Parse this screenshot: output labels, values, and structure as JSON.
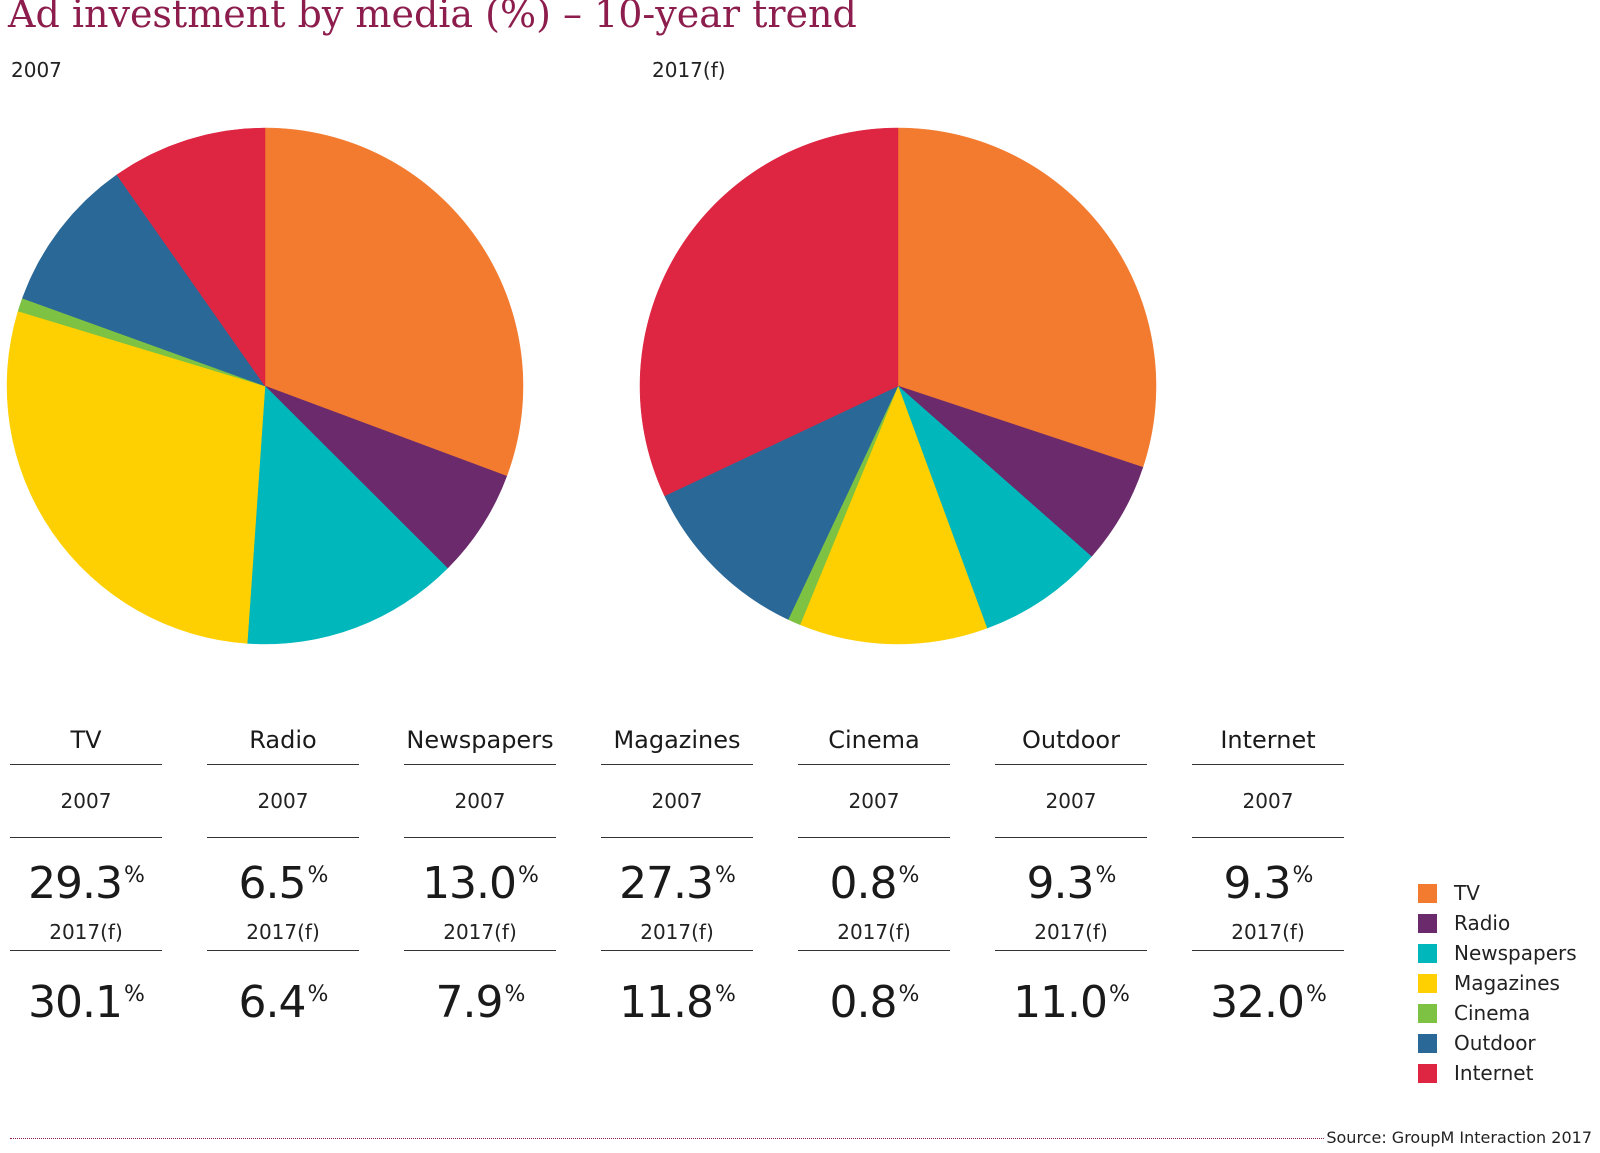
{
  "title": "Ad investment by media (%) – 10-year trend",
  "source": "Source: GroupM Interaction 2017",
  "pie_labels": [
    "2007",
    "2017(f)"
  ],
  "chart_data": [
    {
      "type": "pie",
      "label": "2007",
      "categories": [
        "TV",
        "Radio",
        "Newspapers",
        "Magazines",
        "Cinema",
        "Outdoor",
        "Internet"
      ],
      "values": [
        29.3,
        6.5,
        13.0,
        27.3,
        0.8,
        9.3,
        9.3
      ],
      "colors": [
        "#f37b30",
        "#6b2a6b",
        "#00b7bb",
        "#fed002",
        "#7dc242",
        "#2a6897",
        "#de2541"
      ],
      "legend": "right"
    },
    {
      "type": "pie",
      "label": "2017(f)",
      "categories": [
        "TV",
        "Radio",
        "Newspapers",
        "Magazines",
        "Cinema",
        "Outdoor",
        "Internet"
      ],
      "values": [
        30.1,
        6.4,
        7.9,
        11.8,
        0.8,
        11.0,
        32.0
      ],
      "colors": [
        "#f37b30",
        "#6b2a6b",
        "#00b7bb",
        "#fed002",
        "#7dc242",
        "#2a6897",
        "#de2541"
      ],
      "legend": "right"
    }
  ],
  "table": {
    "percent_sign": "%",
    "columns": [
      {
        "name": "TV",
        "year1": "2007",
        "value1": "29.3",
        "year2": "2017(f)",
        "value2": "30.1"
      },
      {
        "name": "Radio",
        "year1": "2007",
        "value1": "6.5",
        "year2": "2017(f)",
        "value2": "6.4"
      },
      {
        "name": "Newspapers",
        "year1": "2007",
        "value1": "13.0",
        "year2": "2017(f)",
        "value2": "7.9"
      },
      {
        "name": "Magazines",
        "year1": "2007",
        "value1": "27.3",
        "year2": "2017(f)",
        "value2": "11.8"
      },
      {
        "name": "Cinema",
        "year1": "2007",
        "value1": "0.8",
        "year2": "2017(f)",
        "value2": "0.8"
      },
      {
        "name": "Outdoor",
        "year1": "2007",
        "value1": "9.3",
        "year2": "2017(f)",
        "value2": "11.0"
      },
      {
        "name": "Internet",
        "year1": "2007",
        "value1": "9.3",
        "year2": "2017(f)",
        "value2": "32.0"
      }
    ]
  },
  "legend": [
    {
      "label": "TV",
      "color": "#f37b30"
    },
    {
      "label": "Radio",
      "color": "#6b2a6b"
    },
    {
      "label": "Newspapers",
      "color": "#00b7bb"
    },
    {
      "label": "Magazines",
      "color": "#fed002"
    },
    {
      "label": "Cinema",
      "color": "#7dc242"
    },
    {
      "label": "Outdoor",
      "color": "#2a6897"
    },
    {
      "label": "Internet",
      "color": "#de2541"
    }
  ]
}
